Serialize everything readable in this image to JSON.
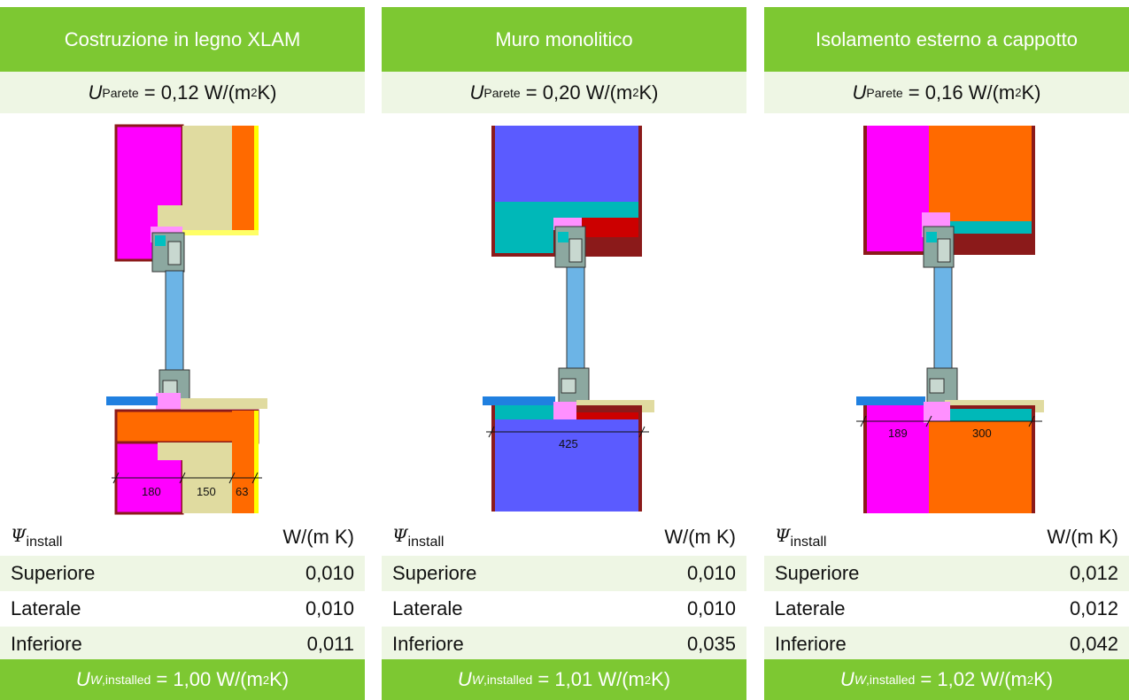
{
  "colors": {
    "header_green": "#7dc832",
    "row_tint": "#eef6e4"
  },
  "columns": [
    {
      "title": "Costruzione in legno XLAM",
      "u_wall_label": "Parete",
      "u_wall_value": "= 0,12 W/(m",
      "psi_unit": "W/(m K)",
      "rows": [
        {
          "label": "Superiore",
          "value": "0,010"
        },
        {
          "label": "Laterale",
          "value": "0,010"
        },
        {
          "label": "Inferiore",
          "value": "0,011"
        }
      ],
      "uw_value": "= 1,00 W/(m",
      "dims": [
        "180",
        "150",
        "63"
      ]
    },
    {
      "title": "Muro monolitico",
      "u_wall_label": "Parete",
      "u_wall_value": "= 0,20 W/(m",
      "psi_unit": "W/(m K)",
      "rows": [
        {
          "label": "Superiore",
          "value": "0,010"
        },
        {
          "label": "Laterale",
          "value": "0,010"
        },
        {
          "label": "Inferiore",
          "value": "0,035"
        }
      ],
      "uw_value": "= 1,01 W/(m",
      "dims": [
        "425"
      ]
    },
    {
      "title": "Isolamento esterno a cappotto",
      "u_wall_label": "Parete",
      "u_wall_value": "= 0,16 W/(m",
      "psi_unit": "W/(m K)",
      "rows": [
        {
          "label": "Superiore",
          "value": "0,012"
        },
        {
          "label": "Laterale",
          "value": "0,012"
        },
        {
          "label": "Inferiore",
          "value": "0,042"
        }
      ],
      "uw_value": "= 1,02 W/(m",
      "dims": [
        "189",
        "300"
      ]
    }
  ],
  "symbols": {
    "u": "U",
    "psi": "Ψ",
    "psi_sub": "install",
    "uw_sub": "W",
    "uw_sub2": ",installed",
    "sq": "2",
    "k": " K)"
  }
}
